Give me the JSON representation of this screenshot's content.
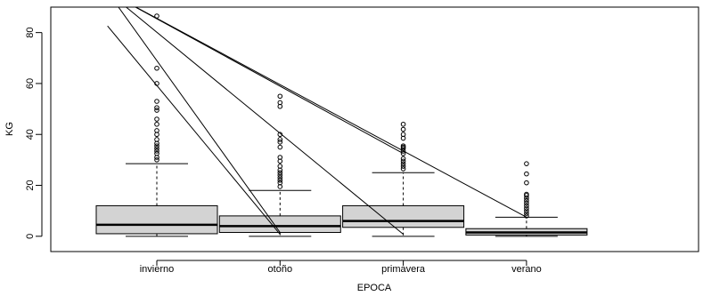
{
  "chart_data": {
    "type": "boxplot",
    "title": "",
    "xlabel": "EPOCA",
    "ylabel": "KG",
    "ylim": [
      -6,
      90
    ],
    "y_ticks": [
      0,
      20,
      40,
      60,
      80
    ],
    "categories": [
      "invierno",
      "otoño",
      "primavera",
      "verano"
    ],
    "boxes": [
      {
        "category": "invierno",
        "min": 0,
        "q1": 1,
        "median": 4.5,
        "q3": 12,
        "whisker_high": 28.5,
        "outliers": [
          30,
          31,
          32.5,
          33.5,
          34.5,
          35.5,
          36.5,
          38,
          40,
          41.5,
          44,
          46,
          49.5,
          50.5,
          53,
          60,
          66,
          86.5
        ]
      },
      {
        "category": "otoño",
        "min": 0,
        "q1": 1.5,
        "median": 4,
        "q3": 8,
        "whisker_high": 18,
        "outliers": [
          19.5,
          21,
          22,
          23,
          24,
          25,
          26,
          27.5,
          29.5,
          31,
          35,
          37,
          38,
          40,
          51,
          52.5,
          55
        ]
      },
      {
        "category": "primavera",
        "min": 0,
        "q1": 3.5,
        "median": 6,
        "q3": 12,
        "whisker_high": 25,
        "outliers": [
          26.5,
          27.5,
          28.5,
          29.5,
          30.5,
          32.5,
          33.5,
          34.5,
          35,
          35.5,
          38.5,
          40,
          42,
          44
        ]
      },
      {
        "category": "verano",
        "min": 0,
        "q1": 0.5,
        "median": 1.5,
        "q3": 3,
        "whisker_high": 7.5,
        "outliers": [
          8,
          9,
          10,
          11,
          12,
          13,
          14,
          15,
          16,
          16.5,
          21,
          24.5,
          28.5
        ]
      }
    ],
    "lines": [
      {
        "from": [
          0.6,
          82.6
        ],
        "to": [
          2.0,
          0.8
        ]
      },
      {
        "from": [
          0.6,
          96
        ],
        "to": [
          3.0,
          0.8
        ]
      },
      {
        "from": [
          0.6,
          96
        ],
        "to": [
          2.0,
          1.5
        ]
      },
      {
        "from": [
          0.6,
          96
        ],
        "to": [
          3.0,
          32.5
        ]
      },
      {
        "from": [
          0.6,
          96
        ],
        "to": [
          4.0,
          7.5
        ]
      }
    ]
  }
}
